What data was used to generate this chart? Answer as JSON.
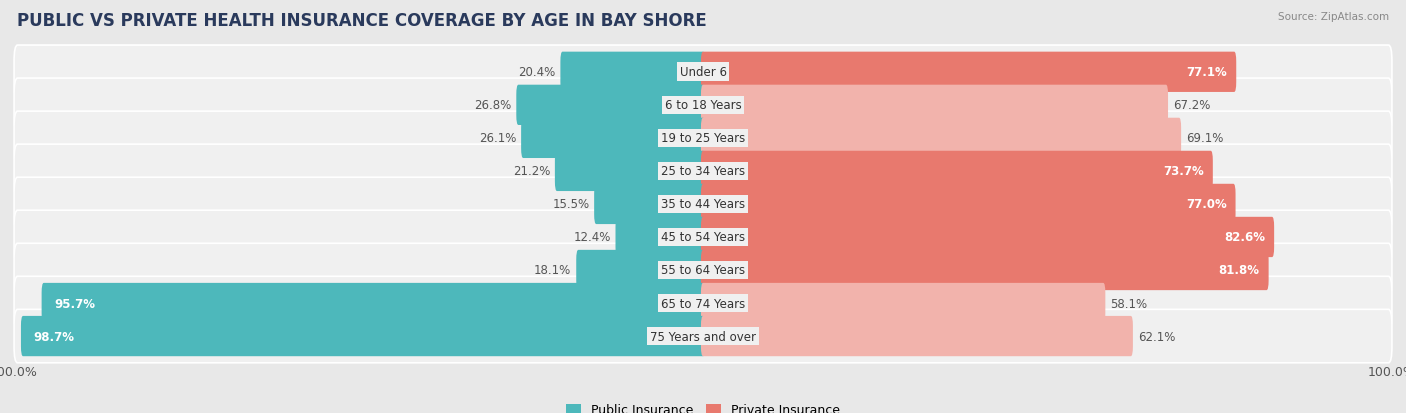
{
  "title": "PUBLIC VS PRIVATE HEALTH INSURANCE COVERAGE BY AGE IN BAY SHORE",
  "source": "Source: ZipAtlas.com",
  "categories": [
    "Under 6",
    "6 to 18 Years",
    "19 to 25 Years",
    "25 to 34 Years",
    "35 to 44 Years",
    "45 to 54 Years",
    "55 to 64 Years",
    "65 to 74 Years",
    "75 Years and over"
  ],
  "public_values": [
    20.4,
    26.8,
    26.1,
    21.2,
    15.5,
    12.4,
    18.1,
    95.7,
    98.7
  ],
  "private_values": [
    77.1,
    67.2,
    69.1,
    73.7,
    77.0,
    82.6,
    81.8,
    58.1,
    62.1
  ],
  "public_color": "#4db8bb",
  "private_color": "#e8796e",
  "private_color_light": "#f2b3ac",
  "background_color": "#e8e8e8",
  "bar_bg_color": "#f0f0f0",
  "bar_height": 0.62,
  "max_value": 100.0,
  "legend_public": "Public Insurance",
  "legend_private": "Private Insurance",
  "title_fontsize": 12,
  "label_fontsize": 9,
  "value_fontsize": 8.5,
  "category_fontsize": 8.5,
  "private_light_threshold": 70
}
